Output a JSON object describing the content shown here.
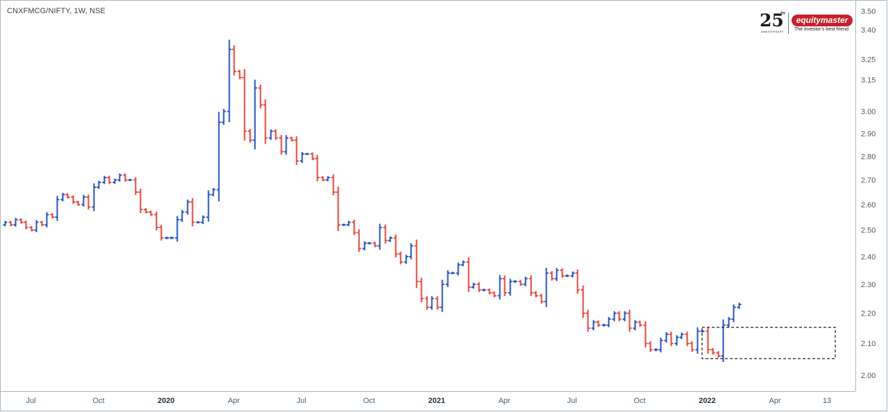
{
  "header": {
    "symbol_title": "CNXFMCG/NIFTY, 1W, NSE"
  },
  "logo": {
    "anniversary_number": "25",
    "anniversary_suffix": "TH",
    "anniversary_caption": "ANNIVERSARY",
    "brand": "equitymaster",
    "tagline": "The investor's best friend",
    "brand_color": "#c8202b"
  },
  "colors": {
    "up": "#2152c4",
    "down": "#ea4335",
    "axis_text": "#555a63"
  },
  "chart_data": {
    "type": "ohlc",
    "title": "CNXFMCG/NIFTY, 1W, NSE",
    "interval": "1W",
    "ylim": [
      1.96,
      3.52
    ],
    "y_scale": "log",
    "y_ticks": [
      "3.50",
      "3.40",
      "3.25",
      "3.15",
      "3.00",
      "2.90",
      "2.80",
      "2.70",
      "2.60",
      "2.50",
      "2.40",
      "2.30",
      "2.20",
      "2.10",
      "2.00"
    ],
    "x_ticks": [
      {
        "label": "Jul",
        "week": 5,
        "bold": false
      },
      {
        "label": "Oct",
        "week": 18,
        "bold": false
      },
      {
        "label": "2020",
        "week": 31,
        "bold": true
      },
      {
        "label": "Apr",
        "week": 44,
        "bold": false
      },
      {
        "label": "Jul",
        "week": 57,
        "bold": false
      },
      {
        "label": "Oct",
        "week": 70,
        "bold": false
      },
      {
        "label": "2021",
        "week": 83,
        "bold": true
      },
      {
        "label": "Apr",
        "week": 96,
        "bold": false
      },
      {
        "label": "Jul",
        "week": 109,
        "bold": false
      },
      {
        "label": "Oct",
        "week": 122,
        "bold": false
      },
      {
        "label": "2022",
        "week": 135,
        "bold": true
      },
      {
        "label": "Apr",
        "week": 148,
        "bold": false
      },
      {
        "label": "13",
        "week": 158,
        "bold": false
      }
    ],
    "close": [
      2.53,
      2.52,
      2.54,
      2.53,
      2.51,
      2.5,
      2.53,
      2.52,
      2.56,
      2.55,
      2.62,
      2.64,
      2.63,
      2.61,
      2.6,
      2.63,
      2.59,
      2.67,
      2.69,
      2.71,
      2.69,
      2.7,
      2.72,
      2.7,
      2.7,
      2.65,
      2.58,
      2.57,
      2.56,
      2.51,
      2.47,
      2.47,
      2.47,
      2.54,
      2.57,
      2.61,
      2.53,
      2.53,
      2.55,
      2.64,
      2.66,
      2.95,
      3.0,
      3.3,
      3.19,
      3.16,
      2.91,
      2.87,
      3.11,
      3.03,
      2.88,
      2.91,
      2.88,
      2.82,
      2.88,
      2.87,
      2.78,
      2.81,
      2.81,
      2.79,
      2.71,
      2.7,
      2.71,
      2.65,
      2.52,
      2.52,
      2.53,
      2.49,
      2.43,
      2.45,
      2.45,
      2.44,
      2.51,
      2.46,
      2.47,
      2.41,
      2.38,
      2.4,
      2.44,
      2.31,
      2.25,
      2.22,
      2.25,
      2.22,
      2.3,
      2.34,
      2.34,
      2.37,
      2.38,
      2.29,
      2.3,
      2.28,
      2.28,
      2.27,
      2.26,
      2.32,
      2.27,
      2.31,
      2.31,
      2.3,
      2.32,
      2.27,
      2.26,
      2.24,
      2.34,
      2.32,
      2.35,
      2.33,
      2.33,
      2.34,
      2.28,
      2.2,
      2.15,
      2.17,
      2.16,
      2.16,
      2.18,
      2.2,
      2.18,
      2.2,
      2.15,
      2.17,
      2.16,
      2.1,
      2.08,
      2.08,
      2.11,
      2.13,
      2.1,
      2.12,
      2.13,
      2.1,
      2.08,
      2.14,
      2.14,
      2.08,
      2.07,
      2.06,
      2.16,
      2.18,
      2.22,
      2.23
    ]
  }
}
